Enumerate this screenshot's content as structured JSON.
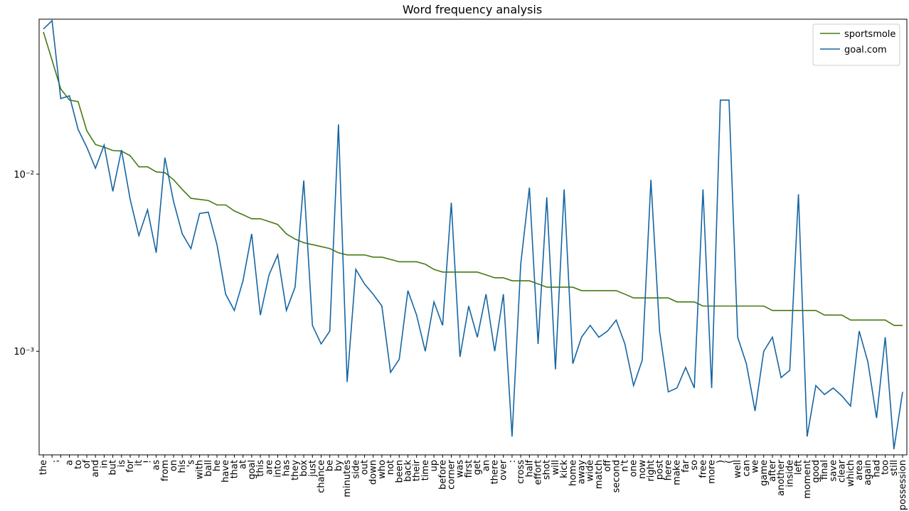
{
  "chart_data": {
    "type": "line",
    "title": "Word frequency analysis",
    "categories": [
      "the",
      ".",
      "'",
      "a",
      "to",
      "of",
      "and",
      "in",
      "but",
      "is",
      "for",
      "it",
      "!",
      "as",
      "from",
      "on",
      "his",
      "'s",
      "with",
      "ball",
      "he",
      "have",
      "that",
      "at",
      "goal",
      "this",
      "are",
      "into",
      "has",
      "they",
      "box",
      "just",
      "chance",
      "be",
      "by",
      "minutes",
      "side",
      "out",
      "down",
      "who",
      "not",
      "been",
      "back",
      "their",
      "time",
      "up",
      "before",
      "corner",
      "was",
      "first",
      "get",
      "an",
      "there",
      "over",
      ":",
      "cross",
      "half",
      "effort",
      "shot",
      "will",
      "kick",
      "home",
      "away",
      "wide",
      "match",
      "off",
      "second",
      "n't",
      "one",
      "now",
      "right",
      "post",
      "here",
      "make",
      "far",
      "so",
      "free",
      "more",
      ")",
      "(",
      "well",
      "can",
      "we",
      "game",
      "after",
      "another",
      "inside",
      "left",
      "moment",
      "good",
      "final",
      "save",
      "clear",
      "which",
      "area",
      "again",
      "had",
      "too",
      "still",
      "possession"
    ],
    "series": [
      {
        "name": "sportsmole",
        "color": "#457a13",
        "values": [
          0.0635,
          0.044,
          0.0303,
          0.0262,
          0.0257,
          0.0176,
          0.0147,
          0.0142,
          0.0136,
          0.0135,
          0.0127,
          0.011,
          0.011,
          0.0103,
          0.0102,
          0.0093,
          0.0082,
          0.0073,
          0.0072,
          0.0071,
          0.0067,
          0.0067,
          0.0062,
          0.0059,
          0.0056,
          0.0056,
          0.0054,
          0.0052,
          0.0046,
          0.0043,
          0.0041,
          0.004,
          0.0039,
          0.0038,
          0.0036,
          0.0035,
          0.0035,
          0.0035,
          0.0034,
          0.0034,
          0.0033,
          0.0032,
          0.0032,
          0.0032,
          0.0031,
          0.0029,
          0.0028,
          0.0028,
          0.0028,
          0.0028,
          0.0028,
          0.0027,
          0.0026,
          0.0026,
          0.0025,
          0.0025,
          0.0025,
          0.0024,
          0.0023,
          0.0023,
          0.0023,
          0.0023,
          0.0022,
          0.0022,
          0.0022,
          0.0022,
          0.0022,
          0.0021,
          0.002,
          0.002,
          0.002,
          0.002,
          0.002,
          0.0019,
          0.0019,
          0.0019,
          0.0018,
          0.0018,
          0.0018,
          0.0018,
          0.0018,
          0.0018,
          0.0018,
          0.0018,
          0.0017,
          0.0017,
          0.0017,
          0.0017,
          0.0017,
          0.0017,
          0.0016,
          0.0016,
          0.0016,
          0.0015,
          0.0015,
          0.0015,
          0.0015,
          0.0015,
          0.0014,
          0.0014
        ]
      },
      {
        "name": "goal.com",
        "color": "#1565a3",
        "values": [
          0.066,
          0.0736,
          0.0267,
          0.0277,
          0.0179,
          0.0142,
          0.0108,
          0.0146,
          0.008,
          0.0137,
          0.0072,
          0.0045,
          0.0063,
          0.0036,
          0.0124,
          0.007,
          0.0046,
          0.0038,
          0.006,
          0.0061,
          0.004,
          0.0021,
          0.0017,
          0.0025,
          0.0046,
          0.0016,
          0.0027,
          0.0035,
          0.0017,
          0.0023,
          0.0092,
          0.0014,
          0.0011,
          0.0013,
          0.0191,
          0.00067,
          0.0029,
          0.0024,
          0.0021,
          0.0018,
          0.00076,
          0.0009,
          0.0022,
          0.0016,
          0.001,
          0.0019,
          0.0014,
          0.0069,
          0.00093,
          0.0018,
          0.0012,
          0.0021,
          0.001,
          0.0021,
          0.00033,
          0.0031,
          0.0084,
          0.0011,
          0.0074,
          0.00079,
          0.0082,
          0.00085,
          0.0012,
          0.0014,
          0.0012,
          0.0013,
          0.0015,
          0.0011,
          0.00064,
          0.00089,
          0.0093,
          0.0013,
          0.00059,
          0.00062,
          0.00081,
          0.00062,
          0.0082,
          0.00062,
          0.0262,
          0.0262,
          0.0012,
          0.00085,
          0.00046,
          0.001,
          0.0012,
          0.00071,
          0.00078,
          0.0077,
          0.00033,
          0.00064,
          0.00057,
          0.00062,
          0.00056,
          0.00049,
          0.0013,
          0.00087,
          0.00042,
          0.0012,
          0.00028,
          0.00059
        ]
      }
    ],
    "ylim": [
      0.00026,
      0.075
    ],
    "log_y": true,
    "yticks": [
      {
        "value": 0.001,
        "label": "10⁻³"
      },
      {
        "value": 0.01,
        "label": "10⁻²"
      }
    ],
    "legend": "upper right"
  }
}
